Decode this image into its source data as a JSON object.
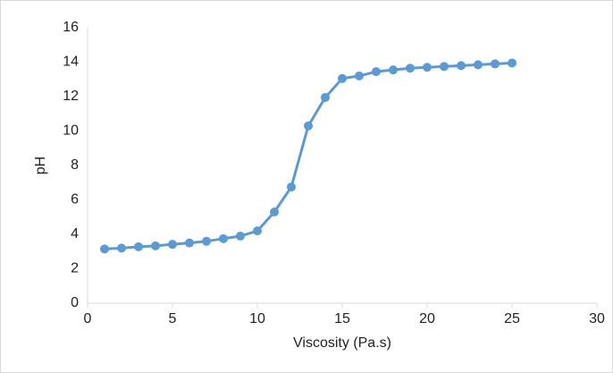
{
  "chart_data": {
    "type": "line",
    "x_label": "Viscosity (Pa.s)",
    "y_label": "pH",
    "x": [
      1,
      2,
      3,
      4,
      5,
      6,
      7,
      8,
      9,
      10,
      11,
      12,
      13,
      14,
      15,
      16,
      17,
      18,
      19,
      20,
      21,
      22,
      23,
      24,
      25
    ],
    "series": [
      {
        "name": "pH",
        "color": "#5b9bd5",
        "values": [
          3.15,
          3.2,
          3.28,
          3.33,
          3.42,
          3.5,
          3.6,
          3.75,
          3.9,
          4.2,
          5.3,
          6.75,
          10.3,
          11.95,
          13.05,
          13.2,
          13.45,
          13.55,
          13.65,
          13.7,
          13.75,
          13.8,
          13.85,
          13.9,
          13.95
        ]
      }
    ],
    "xlim": [
      0,
      30
    ],
    "xticks": [
      0,
      5,
      10,
      15,
      20,
      25,
      30
    ],
    "ylim": [
      0,
      16
    ],
    "yticks": [
      0,
      2,
      4,
      6,
      8,
      10,
      12,
      14,
      16
    ],
    "grid": false
  }
}
